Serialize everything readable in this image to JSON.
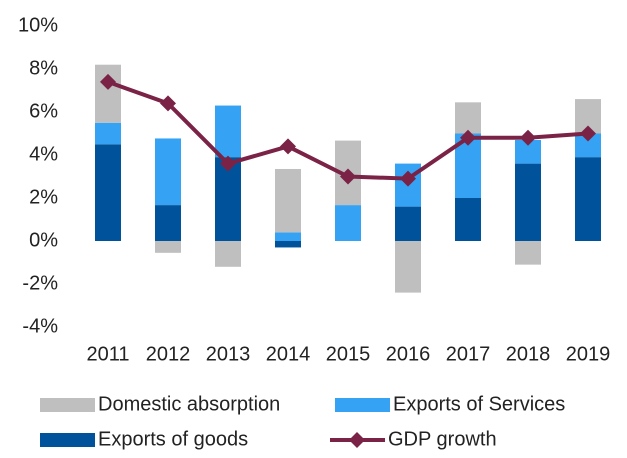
{
  "chart_data": {
    "type": "bar",
    "stacked": true,
    "categories": [
      "2011",
      "2012",
      "2013",
      "2014",
      "2015",
      "2016",
      "2017",
      "2018",
      "2019"
    ],
    "series": [
      {
        "name": "Domestic absorption",
        "color": "#bfbfbf",
        "values": [
          2.7,
          -0.55,
          -1.2,
          2.95,
          3.0,
          -2.4,
          1.45,
          -1.1,
          1.6
        ]
      },
      {
        "name": "Exports of Services",
        "color": "#35a2f4",
        "values": [
          1.0,
          3.1,
          2.4,
          0.4,
          1.67,
          2.0,
          3.0,
          1.1,
          1.1
        ]
      },
      {
        "name": "Exports of goods",
        "color": "#00539b",
        "values": [
          4.5,
          1.67,
          3.9,
          -0.3,
          0,
          1.6,
          2.0,
          3.6,
          3.9
        ]
      },
      {
        "name": "GDP growth",
        "type": "line",
        "color": "#7b2346",
        "values": [
          7.4,
          6.4,
          3.6,
          4.4,
          3.0,
          2.9,
          4.8,
          4.8,
          5.0
        ]
      }
    ],
    "ylim": [
      -4,
      10
    ],
    "yticks": [
      {
        "value": -4,
        "label": "-4%"
      },
      {
        "value": -2,
        "label": "-2%"
      },
      {
        "value": 0,
        "label": "0%"
      },
      {
        "value": 2,
        "label": "2%"
      },
      {
        "value": 4,
        "label": "4%"
      },
      {
        "value": 6,
        "label": "6%"
      },
      {
        "value": 8,
        "label": "8%"
      },
      {
        "value": 10,
        "label": "10%"
      }
    ],
    "grid": false
  }
}
